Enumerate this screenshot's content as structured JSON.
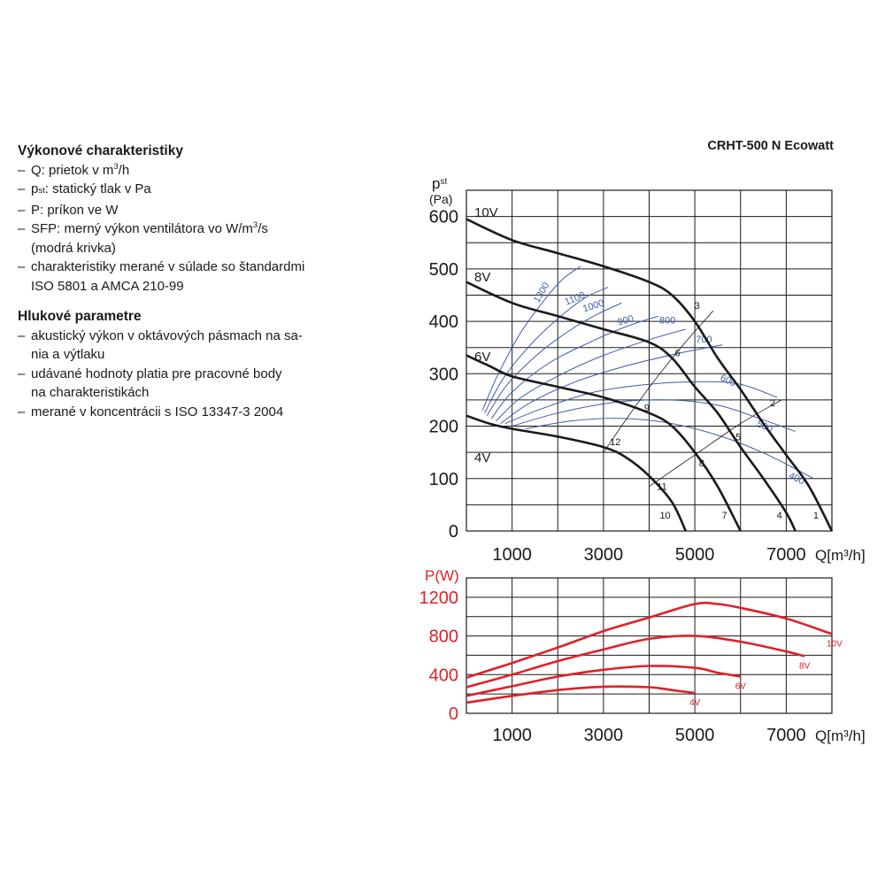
{
  "info": {
    "performance_heading": "Výkonové charakteristiky",
    "performance_items": [
      "Q: prietok v m³/h",
      "pₛₜ: statický tlak v Pa",
      "P: príkon ve W",
      "SFP: merný výkon ventilátora vo W/m³/s (modrá krivka)",
      "charakteristiky merané v súlade so štandardmi ISO 5801 a AMCA 210-99"
    ],
    "noise_heading": "Hlukové parametre",
    "noise_items": [
      "akustický výkon v oktávových pásmach na sania a výtlaku",
      "udávané hodnoty platia pre pracovné body na charakteristikách",
      "merané v koncentrácii s ISO 13347-3 2004"
    ]
  },
  "chart_title": "CRHT-500 N Ecowatt",
  "colors": {
    "curve": "#1a1a1a",
    "sfp": "#3a5ea8",
    "power": "#e0202a",
    "grid": "#1a1a1a"
  },
  "chart_data": [
    {
      "type": "line",
      "title": "CRHT-500 N Ecowatt",
      "xlabel": "Q[m³/h]",
      "ylabel_main": "p",
      "ylabel_sub": "st",
      "ylabel_unit": "(Pa)",
      "xlim": [
        0,
        8000
      ],
      "ylim": [
        0,
        650
      ],
      "x_tick_labels": [
        1000,
        3000,
        5000,
        7000
      ],
      "y_ticks": [
        0,
        100,
        200,
        300,
        400,
        500,
        600
      ],
      "grid": true,
      "series": [
        {
          "name": "10V",
          "points": [
            [
              0,
              595
            ],
            [
              1000,
              555
            ],
            [
              2000,
              530
            ],
            [
              3000,
              505
            ],
            [
              4000,
              475
            ],
            [
              4500,
              450
            ],
            [
              5000,
              400
            ],
            [
              5500,
              330
            ],
            [
              6000,
              270
            ],
            [
              6500,
              205
            ],
            [
              7000,
              145
            ],
            [
              7500,
              85
            ],
            [
              8000,
              0
            ]
          ]
        },
        {
          "name": "8V",
          "points": [
            [
              0,
              475
            ],
            [
              1000,
              435
            ],
            [
              2000,
              410
            ],
            [
              3000,
              385
            ],
            [
              4000,
              360
            ],
            [
              4500,
              330
            ],
            [
              5000,
              275
            ],
            [
              5500,
              225
            ],
            [
              6000,
              160
            ],
            [
              6500,
              100
            ],
            [
              7000,
              35
            ],
            [
              7200,
              0
            ]
          ]
        },
        {
          "name": "6V",
          "points": [
            [
              0,
              335
            ],
            [
              500,
              315
            ],
            [
              1000,
              295
            ],
            [
              2000,
              275
            ],
            [
              3000,
              255
            ],
            [
              4000,
              225
            ],
            [
              4500,
              200
            ],
            [
              5000,
              150
            ],
            [
              5500,
              85
            ],
            [
              6000,
              0
            ]
          ]
        },
        {
          "name": "4V",
          "points": [
            [
              0,
              220
            ],
            [
              500,
              205
            ],
            [
              1000,
              195
            ],
            [
              2000,
              180
            ],
            [
              3000,
              160
            ],
            [
              3500,
              140
            ],
            [
              4000,
              105
            ],
            [
              4500,
              55
            ],
            [
              4800,
              0
            ]
          ]
        }
      ],
      "sfp_curves": [
        {
          "label": "1300",
          "points": [
            [
              350,
              230
            ],
            [
              700,
              300
            ],
            [
              1200,
              380
            ],
            [
              1700,
              440
            ],
            [
              2100,
              480
            ],
            [
              2500,
              505
            ]
          ]
        },
        {
          "label": "1100",
          "points": [
            [
              400,
              225
            ],
            [
              800,
              290
            ],
            [
              1400,
              355
            ],
            [
              2000,
              405
            ],
            [
              2600,
              445
            ],
            [
              3100,
              465
            ]
          ]
        },
        {
          "label": "1000",
          "points": [
            [
              450,
              220
            ],
            [
              900,
              280
            ],
            [
              1600,
              340
            ],
            [
              2300,
              385
            ],
            [
              2900,
              415
            ],
            [
              3400,
              435
            ]
          ]
        },
        {
          "label": "900",
          "points": [
            [
              550,
              215
            ],
            [
              1000,
              265
            ],
            [
              1800,
              320
            ],
            [
              2700,
              360
            ],
            [
              3500,
              390
            ],
            [
              4200,
              410
            ]
          ]
        },
        {
          "label": "800",
          "points": [
            [
              650,
              210
            ],
            [
              1200,
              255
            ],
            [
              2100,
              300
            ],
            [
              3000,
              335
            ],
            [
              4000,
              365
            ],
            [
              4800,
              385
            ]
          ]
        },
        {
          "label": "700",
          "points": [
            [
              750,
              205
            ],
            [
              1400,
              245
            ],
            [
              2400,
              285
            ],
            [
              3500,
              315
            ],
            [
              4700,
              340
            ],
            [
              5600,
              355
            ]
          ]
        },
        {
          "label": "600",
          "points": [
            [
              850,
              205
            ],
            [
              1700,
              235
            ],
            [
              2800,
              265
            ],
            [
              4000,
              280
            ],
            [
              5200,
              285
            ],
            [
              6000,
              280
            ],
            [
              6800,
              255
            ]
          ]
        },
        {
          "label": "500",
          "points": [
            [
              1000,
              200
            ],
            [
              2000,
              225
            ],
            [
              3200,
              245
            ],
            [
              4400,
              250
            ],
            [
              5500,
              240
            ],
            [
              6400,
              215
            ],
            [
              7200,
              190
            ]
          ]
        },
        {
          "label": "400",
          "points": [
            [
              1300,
              195
            ],
            [
              2300,
              210
            ],
            [
              3400,
              215
            ],
            [
              4500,
              205
            ],
            [
              5600,
              180
            ],
            [
              6600,
              145
            ],
            [
              7600,
              100
            ]
          ]
        }
      ],
      "operating_points": [
        {
          "label": "1",
          "q": 7650,
          "p": 20
        },
        {
          "label": "2",
          "q": 6700,
          "p": 235
        },
        {
          "label": "3",
          "q": 5050,
          "p": 420
        },
        {
          "label": "4",
          "q": 6850,
          "p": 20
        },
        {
          "label": "5",
          "q": 5950,
          "p": 170
        },
        {
          "label": "6",
          "q": 4620,
          "p": 330
        },
        {
          "label": "7",
          "q": 5650,
          "p": 20
        },
        {
          "label": "8",
          "q": 5150,
          "p": 120
        },
        {
          "label": "9",
          "q": 3950,
          "p": 225
        },
        {
          "label": "10",
          "q": 4350,
          "p": 20
        },
        {
          "label": "11",
          "q": 4280,
          "p": 75
        },
        {
          "label": "12",
          "q": 3260,
          "p": 160
        }
      ],
      "system_lines": [
        [
          [
            3000,
            150
          ],
          [
            3800,
            250
          ],
          [
            4600,
            340
          ],
          [
            5400,
            420
          ]
        ],
        [
          [
            4000,
            85
          ],
          [
            5000,
            145
          ],
          [
            6000,
            205
          ],
          [
            6900,
            250
          ]
        ]
      ]
    },
    {
      "type": "line",
      "title": "",
      "xlabel": "Q[m³/h]",
      "ylabel": "P(W)",
      "xlim": [
        0,
        8000
      ],
      "ylim": [
        0,
        1400
      ],
      "x_tick_labels": [
        1000,
        3000,
        5000,
        7000
      ],
      "y_ticks": [
        0,
        400,
        800,
        1200
      ],
      "grid": true,
      "series": [
        {
          "name": "10V",
          "points": [
            [
              0,
              370
            ],
            [
              1000,
              520
            ],
            [
              2000,
              680
            ],
            [
              3000,
              850
            ],
            [
              4000,
              990
            ],
            [
              5000,
              1130
            ],
            [
              5500,
              1130
            ],
            [
              6000,
              1090
            ],
            [
              7000,
              980
            ],
            [
              8000,
              820
            ]
          ]
        },
        {
          "name": "8V",
          "points": [
            [
              0,
              270
            ],
            [
              1000,
              400
            ],
            [
              2000,
              540
            ],
            [
              3000,
              660
            ],
            [
              4000,
              770
            ],
            [
              5000,
              800
            ],
            [
              6000,
              740
            ],
            [
              7000,
              640
            ],
            [
              7400,
              590
            ]
          ]
        },
        {
          "name": "6V",
          "points": [
            [
              0,
              180
            ],
            [
              1000,
              280
            ],
            [
              2000,
              380
            ],
            [
              3000,
              450
            ],
            [
              4000,
              490
            ],
            [
              5000,
              470
            ],
            [
              5500,
              420
            ],
            [
              6000,
              380
            ]
          ]
        },
        {
          "name": "4V",
          "points": [
            [
              0,
              110
            ],
            [
              1000,
              180
            ],
            [
              2000,
              240
            ],
            [
              3000,
              275
            ],
            [
              4000,
              270
            ],
            [
              4500,
              240
            ],
            [
              5000,
              210
            ]
          ]
        }
      ]
    }
  ]
}
